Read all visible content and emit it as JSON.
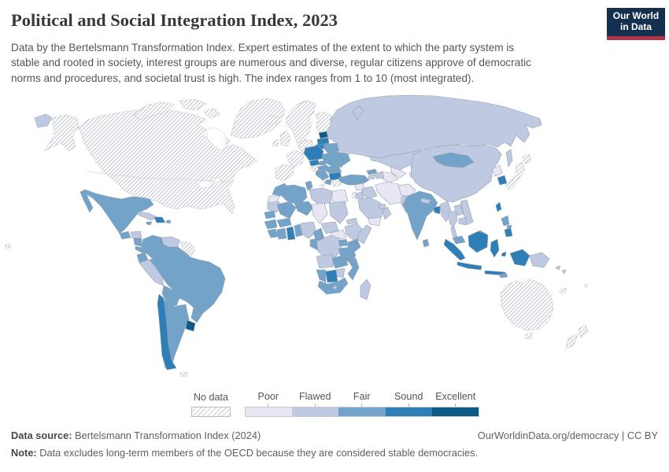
{
  "header": {
    "title": "Political and Social Integration Index, 2023",
    "subtitle_lines": [
      "Data by the Bertelsmann Transformation Index. Expert estimates of the extent to which the party system is",
      "stable and rooted in society, interest groups are numerous and diverse, regular citizens approve of democratic",
      "norms and procedures, and societal trust is high. The index ranges from 1 to 10 (most integrated)."
    ],
    "logo": {
      "line1": "Our World",
      "line2": "in Data"
    }
  },
  "legend": {
    "no_data_label": "No data",
    "categories": [
      {
        "key": "poor",
        "label": "Poor",
        "color": "#e8e6f2"
      },
      {
        "key": "flawed",
        "label": "Flawed",
        "color": "#bfc9e2"
      },
      {
        "key": "fair",
        "label": "Fair",
        "color": "#74a3ca"
      },
      {
        "key": "sound",
        "label": "Sound",
        "color": "#2e7fb8"
      },
      {
        "key": "excellent",
        "label": "Excellent",
        "color": "#0e5a87"
      }
    ],
    "colors": {
      "poor": "#e8e6f2",
      "flawed": "#bfc9e2",
      "fair": "#74a3ca",
      "sound": "#2e7fb8",
      "excellent": "#0e5a87"
    },
    "nodata_hatch_line": "#d9d9e0"
  },
  "footer": {
    "source_label": "Data source:",
    "source_text": " Bertelsmann Transformation Index (2024)",
    "link_text": "OurWorldinData.org/democracy | CC BY",
    "note_label": "Note:",
    "note_text": " Data excludes long-term members of the OECD because they are considered stable democracies."
  },
  "chart_data": {
    "type": "choropleth_map",
    "title": "Political and Social Integration Index, 2023",
    "classes": [
      "Poor",
      "Flawed",
      "Fair",
      "Sound",
      "Excellent"
    ],
    "no_data_class": "No data",
    "index_range": "1 to 10",
    "countries": {
      "greenland": "no_data",
      "iceland": "no_data",
      "svalbard": "no_data",
      "alaska": "no_data",
      "canada-united-states": "no_data",
      "canadian-arctic-islands": "no_data",
      "hawaii": "no_data",
      "guyana-suriname-french-guiana": "no_data",
      "spain-portugal": "no_data",
      "france": "no_data",
      "germany-benelux": "no_data",
      "denmark": "no_data",
      "united-kingdom": "no_data",
      "ireland": "no_data",
      "norway-sweden": "no_data",
      "finland": "no_data",
      "italy": "no_data",
      "greece": "no_data",
      "israel": "no_data",
      "japan": "no_data",
      "australia": "no_data",
      "new-zealand": "no_data",
      "new-caledonia": "no_data",
      "falkland-islands": "no_data",
      "fiji": "no_data",
      "north-korea": "poor",
      "iran": "poor",
      "afghanistan": "poor",
      "uzbekistan": "poor",
      "turkmenistan": "poor",
      "tajikistan": "poor",
      "syria": "poor",
      "yemen": "poor",
      "egypt": "poor",
      "chad": "poor",
      "south-sudan": "poor",
      "western-sahara": "poor",
      "russia": "flawed",
      "kazakhstan": "flawed",
      "kyrgyzstan": "flawed",
      "armenia": "flawed",
      "azerbaijan": "flawed",
      "honduras": "flawed",
      "cuba": "flawed",
      "venezuela": "flawed",
      "peru": "flawed",
      "libya": "flawed",
      "mauritania": "flawed",
      "sudan": "flawed",
      "eritrea": "flawed",
      "ethiopia": "flawed",
      "somalia": "flawed",
      "nigeria": "flawed",
      "central-african-republic": "flawed",
      "democratic-republic-of-congo": "flawed",
      "angola": "flawed",
      "zimbabwe": "flawed",
      "lesotho": "flawed",
      "madagascar": "flawed",
      "iraq": "flawed",
      "jordan": "flawed",
      "saudi-arabia": "flawed",
      "oman": "flawed",
      "gulf-states": "flawed",
      "pakistan": "flawed",
      "nepal": "flawed",
      "myanmar": "flawed",
      "thailand": "flawed",
      "laos": "flawed",
      "vietnam": "flawed",
      "cambodia": "flawed",
      "china": "flawed",
      "papua-new-guinea": "flawed",
      "solomon-islands": "flawed",
      "mexico": "fair",
      "guatemala": "fair",
      "nicaragua": "fair",
      "costa-rica-panama": "fair",
      "jamaica": "fair",
      "puerto-rico": "fair",
      "colombia": "fair",
      "ecuador": "fair",
      "brazil": "fair",
      "bolivia": "fair",
      "paraguay": "fair",
      "argentina": "fair",
      "morocco": "fair",
      "algeria": "fair",
      "tunisia": "fair",
      "mali": "fair",
      "niger": "fair",
      "senegal": "fair",
      "guinea": "fair",
      "sierra-leone-liberia": "fair",
      "ivory-coast": "fair",
      "burkina-faso": "fair",
      "togo-benin": "fair",
      "cameroon": "fair",
      "gabon-congo": "fair",
      "uganda": "fair",
      "kenya": "fair",
      "tanzania": "fair",
      "zambia": "fair",
      "malawi": "fair",
      "mozambique": "fair",
      "namibia": "fair",
      "south-africa": "fair",
      "india": "fair",
      "sri-lanka": "fair",
      "malaysia": "fair",
      "malaysia-borneo": "fair",
      "mongolia": "fair",
      "turkey": "fair",
      "georgia": "fair",
      "ukraine": "fair",
      "belarus": "fair",
      "slovakia": "fair",
      "hungary": "fair",
      "romania": "fair",
      "moldova": "fair",
      "western-balkans": "fair",
      "albania": "fair",
      "philippines-luzon": "fair",
      "philippines-visayas": "fair",
      "timor-leste": "fair",
      "dominican-republic": "sound",
      "chile": "sound",
      "poland": "sound",
      "czechia": "sound",
      "latvia": "sound",
      "lithuania": "sound",
      "bulgaria": "sound",
      "ghana": "sound",
      "botswana": "sound",
      "bangladesh": "sound",
      "south-korea": "sound",
      "taiwan": "sound",
      "indonesia": "sound",
      "philippines-mindanao": "sound",
      "uruguay": "excellent",
      "estonia": "excellent"
    }
  }
}
